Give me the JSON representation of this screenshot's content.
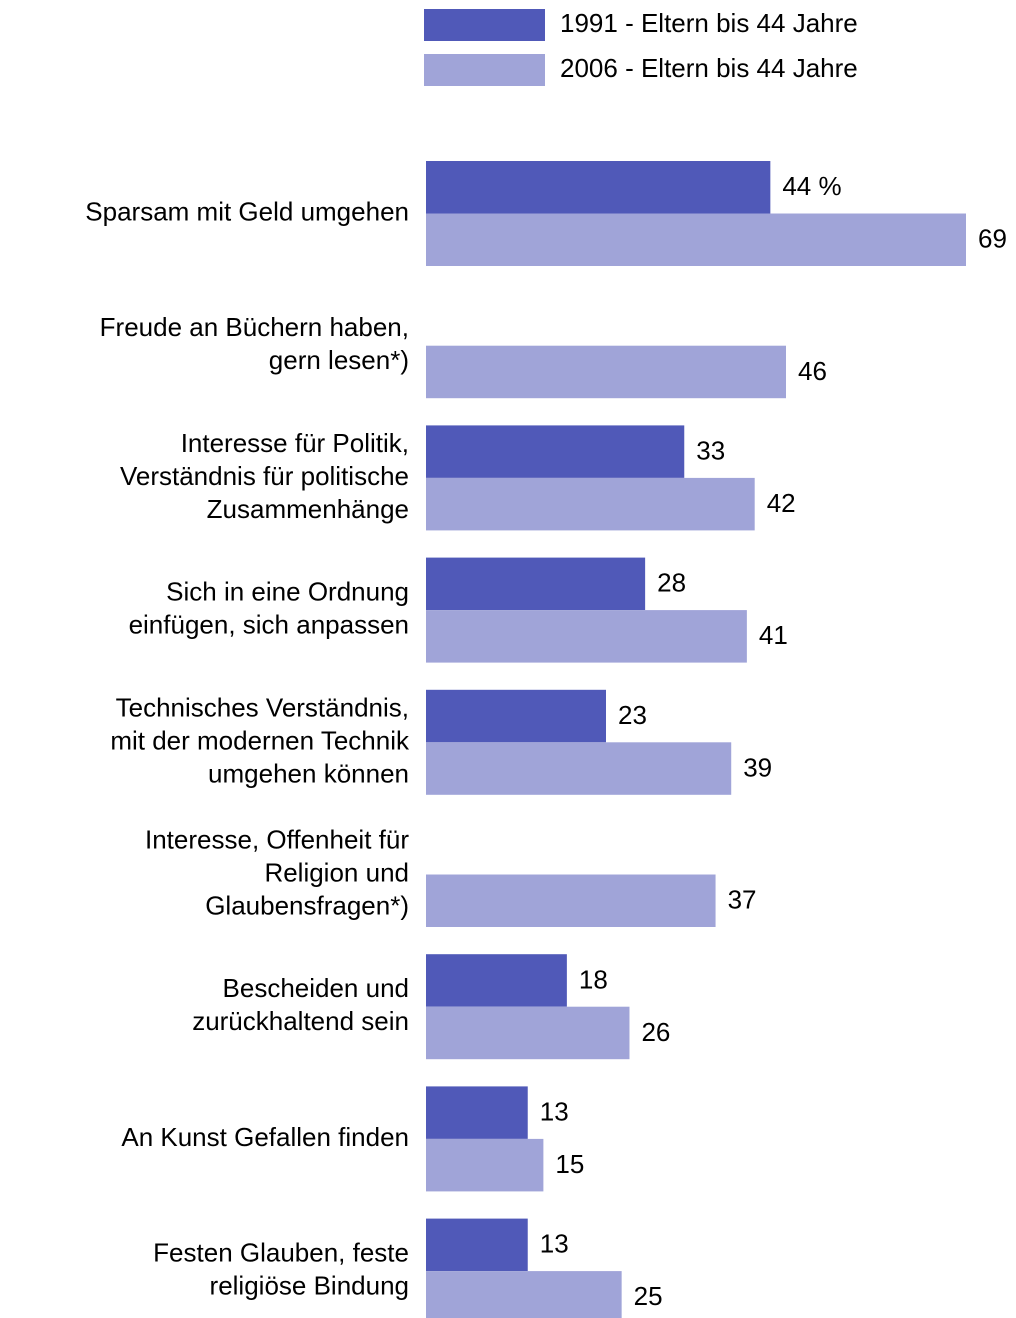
{
  "chart_data": {
    "type": "bar",
    "orientation": "horizontal",
    "categories": [
      "Sparsam mit Geld umgehen",
      "Freude an Büchern haben,\ngern lesen*)",
      "Interesse für Politik,\nVerständnis für politische\nZusammenhänge",
      "Sich in eine Ordnung\neinfügen, sich anpassen",
      "Technisches Verständnis,\nmit der modernen Technik\numgehen können",
      "Interesse, Offenheit für\nReligion und\nGlaubensfragen*)",
      "Bescheiden und\nzurückhaltend sein",
      "An Kunst Gefallen finden",
      "Festen Glauben, feste\nreligiöse Bindung"
    ],
    "series": [
      {
        "name": "1991 - Eltern bis 44 Jahre",
        "color": "#5059b8",
        "values": [
          44,
          null,
          33,
          28,
          23,
          null,
          18,
          13,
          13
        ],
        "value_labels": [
          "44 %",
          null,
          "33",
          "28",
          "23",
          null,
          "18",
          "13",
          "13"
        ]
      },
      {
        "name": "2006 - Eltern bis 44 Jahre",
        "color": "#a0a4d8",
        "values": [
          69,
          46,
          42,
          41,
          39,
          37,
          26,
          15,
          25
        ]
      }
    ]
  }
}
